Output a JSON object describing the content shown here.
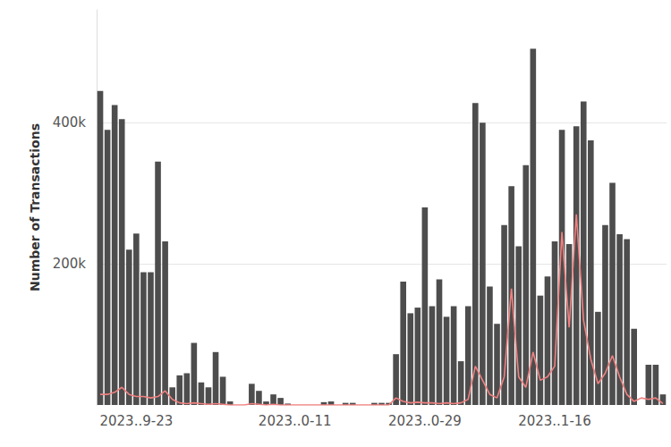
{
  "chart_data": {
    "type": "bar",
    "y_label": "Number of Transactions",
    "categories": [
      null,
      null,
      null,
      null,
      null,
      "2023..9-23",
      null,
      null,
      null,
      null,
      null,
      null,
      null,
      null,
      null,
      null,
      null,
      null,
      null,
      null,
      null,
      null,
      null,
      null,
      null,
      null,
      null,
      "2023..0-11",
      null,
      null,
      null,
      null,
      null,
      null,
      null,
      null,
      null,
      null,
      null,
      null,
      null,
      null,
      null,
      null,
      null,
      "2023..0-29",
      null,
      null,
      null,
      null,
      null,
      null,
      null,
      null,
      null,
      null,
      null,
      null,
      null,
      null,
      null,
      null,
      null,
      "2023..1-16",
      null,
      null,
      null,
      null,
      null,
      null,
      null,
      null,
      null,
      null,
      null,
      null,
      null,
      null,
      null
    ],
    "series": [
      {
        "type": "bar",
        "color": "#4d4d4d",
        "values": [
          445000,
          390000,
          425000,
          405000,
          220000,
          243000,
          188000,
          188000,
          345000,
          232000,
          25000,
          42000,
          45000,
          88000,
          32000,
          25000,
          75000,
          40000,
          5000,
          0,
          0,
          30000,
          20000,
          5000,
          15000,
          10000,
          2000,
          0,
          0,
          0,
          0,
          4000,
          5000,
          0,
          3000,
          3000,
          0,
          0,
          3000,
          3000,
          3000,
          72000,
          175000,
          130000,
          138000,
          280000,
          140000,
          178000,
          125000,
          140000,
          62000,
          140000,
          428000,
          400000,
          168000,
          115000,
          255000,
          310000,
          225000,
          340000,
          505000,
          155000,
          182000,
          232000,
          390000,
          228000,
          395000,
          430000,
          375000,
          132000,
          255000,
          315000,
          242000,
          235000,
          108000,
          0,
          57000,
          57000,
          15000
        ]
      },
      {
        "type": "line",
        "color": "#f08080",
        "values": [
          15000,
          15000,
          18000,
          25000,
          15000,
          12000,
          12000,
          10000,
          12000,
          20000,
          8000,
          3000,
          2000,
          3000,
          2000,
          1000,
          2000,
          1000,
          0,
          0,
          0,
          2000,
          1000,
          0,
          1000,
          0,
          0,
          0,
          0,
          0,
          0,
          0,
          0,
          0,
          0,
          0,
          0,
          0,
          0,
          0,
          0,
          10000,
          5000,
          3000,
          4000,
          3000,
          3000,
          2000,
          3000,
          2000,
          3000,
          8000,
          55000,
          35000,
          15000,
          10000,
          40000,
          165000,
          40000,
          25000,
          75000,
          35000,
          40000,
          55000,
          245000,
          110000,
          270000,
          120000,
          65000,
          30000,
          45000,
          70000,
          40000,
          15000,
          5000,
          10000,
          8000,
          10000,
          2000
        ]
      }
    ],
    "ylim": [
      0,
      560000
    ],
    "yticks": [
      {
        "value": 200000,
        "label": "200k"
      },
      {
        "value": 400000,
        "label": "400k"
      }
    ],
    "grid": true
  }
}
